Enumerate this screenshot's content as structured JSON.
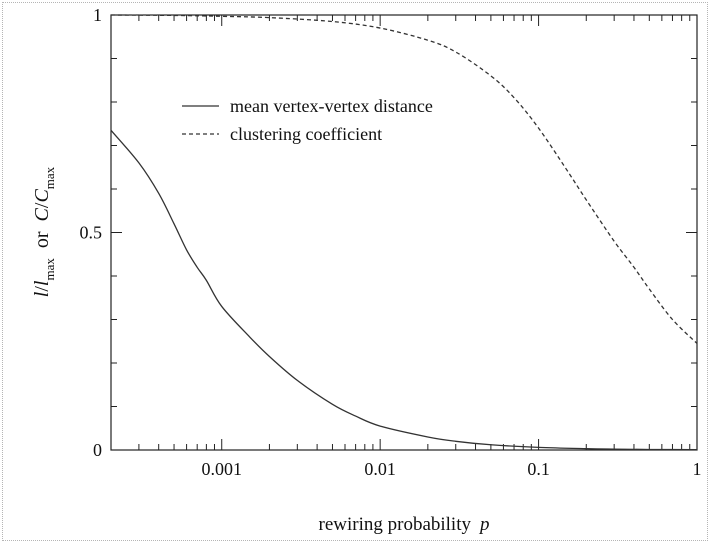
{
  "chart_data": {
    "type": "line",
    "x_scale": "log",
    "xlim": [
      0.0002,
      1
    ],
    "ylim": [
      0,
      1
    ],
    "xticks": [
      {
        "value": 0.001,
        "label": "0.001"
      },
      {
        "value": 0.01,
        "label": "0.01"
      },
      {
        "value": 0.1,
        "label": "0.1"
      },
      {
        "value": 1,
        "label": "1"
      }
    ],
    "yticks": [
      {
        "value": 0,
        "label": "0"
      },
      {
        "value": 0.5,
        "label": "0.5"
      },
      {
        "value": 1,
        "label": "1"
      }
    ],
    "xlabel": {
      "text": "rewiring probability",
      "var": "p"
    },
    "ylabel": {
      "l": "l",
      "l_den": "l",
      "l_sub": "max",
      "or": "or",
      "c": "C",
      "c_den": "C",
      "c_sub": "max"
    },
    "legend_position": "upper-center",
    "series": [
      {
        "name": "mean vertex-vertex distance",
        "style": "solid",
        "x": [
          0.0002,
          0.0003,
          0.0004,
          0.0005,
          0.0006,
          0.0007,
          0.0008,
          0.001,
          0.0015,
          0.002,
          0.003,
          0.005,
          0.007,
          0.01,
          0.02,
          0.03,
          0.05,
          0.1,
          0.2,
          0.3,
          0.5,
          1.0
        ],
        "values": [
          0.735,
          0.66,
          0.59,
          0.52,
          0.46,
          0.42,
          0.39,
          0.33,
          0.26,
          0.215,
          0.16,
          0.105,
          0.078,
          0.055,
          0.03,
          0.02,
          0.012,
          0.006,
          0.003,
          0.002,
          0.0012,
          0.0008
        ]
      },
      {
        "name": "clustering coefficient",
        "style": "dashed",
        "x": [
          0.0002,
          0.0005,
          0.001,
          0.002,
          0.005,
          0.01,
          0.02,
          0.03,
          0.05,
          0.07,
          0.1,
          0.15,
          0.2,
          0.3,
          0.4,
          0.5,
          0.7,
          1.0
        ],
        "values": [
          1.0,
          0.999,
          0.997,
          0.994,
          0.985,
          0.97,
          0.942,
          0.915,
          0.86,
          0.81,
          0.74,
          0.645,
          0.575,
          0.48,
          0.42,
          0.37,
          0.3,
          0.245
        ]
      }
    ]
  }
}
